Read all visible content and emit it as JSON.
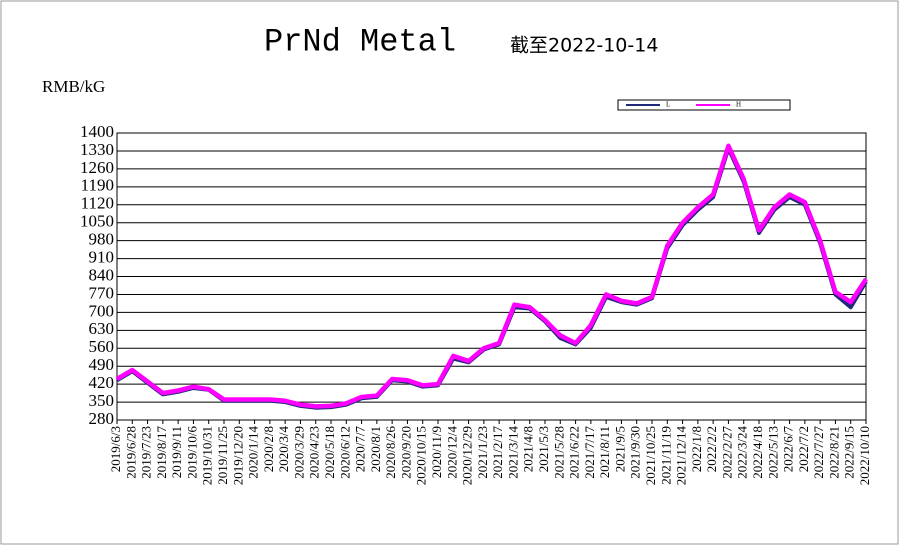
{
  "chart_data": {
    "type": "line",
    "title": "PrNd Metal",
    "subtitle": "截至2022-10-14",
    "y_label": "RMB/kG",
    "categories": [
      "2019/6/3",
      "2019/6/28",
      "2019/7/23",
      "2019/8/17",
      "2019/9/11",
      "2019/10/6",
      "2019/10/31",
      "2019/11/25",
      "2019/12/20",
      "2020/1/14",
      "2020/2/8",
      "2020/3/4",
      "2020/3/29",
      "2020/4/23",
      "2020/5/18",
      "2020/6/12",
      "2020/7/7",
      "2020/8/1",
      "2020/8/26",
      "2020/9/20",
      "2020/10/15",
      "2020/11/9",
      "2020/12/4",
      "2020/12/29",
      "2021/1/23",
      "2021/2/17",
      "2021/3/14",
      "2021/4/8",
      "2021/5/3",
      "2021/5/28",
      "2021/6/22",
      "2021/7/17",
      "2021/8/11",
      "2021/9/5",
      "2021/9/30",
      "2021/10/25",
      "2021/11/19",
      "2021/12/14",
      "2022/1/8",
      "2022/2/2",
      "2022/2/27",
      "2022/3/24",
      "2022/4/18",
      "2022/5/13",
      "2022/6/7",
      "2022/7/2",
      "2022/7/27",
      "2022/8/21",
      "2022/9/15",
      "2022/10/10"
    ],
    "series": [
      {
        "name": "L",
        "color": "#1f2a7a",
        "values": [
          435,
          470,
          425,
          380,
          390,
          405,
          398,
          355,
          355,
          355,
          355,
          350,
          335,
          328,
          330,
          340,
          365,
          370,
          435,
          430,
          410,
          415,
          520,
          505,
          555,
          575,
          720,
          715,
          665,
          600,
          575,
          640,
          760,
          740,
          730,
          755,
          950,
          1040,
          1100,
          1150,
          1340,
          1210,
          1010,
          1100,
          1150,
          1120,
          970,
          770,
          720,
          820
        ]
      },
      {
        "name": "H",
        "color": "#ff00ff",
        "values": [
          440,
          475,
          430,
          385,
          395,
          410,
          400,
          360,
          360,
          360,
          360,
          355,
          340,
          333,
          335,
          345,
          370,
          375,
          440,
          435,
          415,
          420,
          530,
          510,
          560,
          580,
          730,
          720,
          670,
          610,
          580,
          650,
          770,
          745,
          735,
          760,
          960,
          1050,
          1110,
          1160,
          1350,
          1220,
          1020,
          1110,
          1160,
          1130,
          980,
          780,
          740,
          830
        ]
      }
    ],
    "ylim": [
      280,
      1400
    ],
    "yticks": [
      280,
      350,
      420,
      490,
      560,
      630,
      700,
      770,
      840,
      910,
      980,
      1050,
      1120,
      1190,
      1260,
      1330,
      1400
    ],
    "grid": true
  }
}
